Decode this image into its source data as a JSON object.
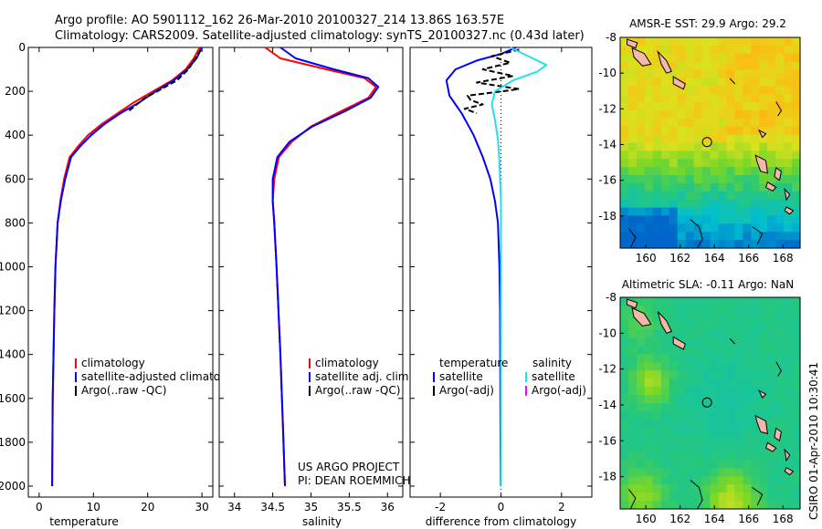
{
  "header": {
    "line1": "Argo profile: AO 5901112_162 26-Mar-2010 20100327_214 13.86S 163.57E",
    "line2": "Climatology: CARS2009. Satellite-adjusted climatology: synTS_20100327.nc (0.43d later)"
  },
  "side_label": "CSIRO 01-Apr-2010 10:30:41",
  "colors": {
    "climatology": "#ff0000",
    "satellite": "#0000ff",
    "argo": "#000000",
    "salinity_satellite": "#22e0f0",
    "salinity_argo": "#ff00ff",
    "land": "#f3b8a8"
  },
  "chart_data": [
    {
      "type": "line",
      "id": "temperature",
      "xlabel": "temperature",
      "ylabel": "",
      "xlim": [
        -2,
        32
      ],
      "ylim": [
        2050,
        0
      ],
      "xticks": [
        0,
        10,
        20,
        30
      ],
      "yticks": [
        0,
        200,
        400,
        600,
        800,
        1000,
        1200,
        1400,
        1600,
        1800,
        2000
      ],
      "legend": [
        "climatology",
        "satellite-adjusted climatology",
        "Argo(..raw -QC)"
      ],
      "series": [
        {
          "name": "climatology",
          "color": "#ff0000",
          "x": [
            29.6,
            28.5,
            27.0,
            24.5,
            21.0,
            17.5,
            14.5,
            11.5,
            9.0,
            7.2,
            5.6,
            4.6,
            3.9,
            3.4,
            3.0,
            2.8,
            2.5,
            2.4
          ],
          "y": [
            0,
            50,
            100,
            150,
            200,
            250,
            300,
            350,
            400,
            450,
            500,
            600,
            700,
            800,
            1000,
            1200,
            1600,
            2000
          ]
        },
        {
          "name": "satellite-adjusted climatology",
          "color": "#0000ff",
          "x": [
            30.0,
            29.0,
            27.3,
            24.8,
            21.5,
            18.5,
            15.0,
            12.0,
            9.6,
            7.6,
            5.9,
            4.8,
            4.0,
            3.4,
            3.0,
            2.8,
            2.5,
            2.4
          ],
          "y": [
            0,
            50,
            100,
            150,
            200,
            250,
            300,
            350,
            400,
            450,
            500,
            600,
            700,
            800,
            1000,
            1200,
            1600,
            2000
          ]
        },
        {
          "name": "Argo(..raw -QC)",
          "color": "#000000",
          "dashed": true,
          "x": [
            29.8,
            28.8,
            27.5,
            25.4,
            22.5,
            19.5,
            18.0,
            16.5
          ],
          "y": [
            10,
            50,
            100,
            150,
            190,
            230,
            260,
            290
          ]
        }
      ]
    },
    {
      "type": "line",
      "id": "salinity",
      "xlabel": "salinity",
      "ylabel": "",
      "xlim": [
        33.8,
        36.2
      ],
      "ylim": [
        2050,
        0
      ],
      "xticks": [
        34,
        34.5,
        35,
        35.5,
        36
      ],
      "yticks": [
        0,
        200,
        400,
        600,
        800,
        1000,
        1200,
        1400,
        1600,
        1800,
        2000
      ],
      "legend": [
        "climatology",
        "satellite adj. clim.",
        "Argo(..raw -QC)"
      ],
      "annotation": [
        "US ARGO PROJECT",
        "PI: DEAN ROEMMICH"
      ],
      "series": [
        {
          "name": "climatology",
          "color": "#ff0000",
          "x": [
            34.4,
            34.6,
            35.2,
            35.7,
            35.85,
            35.75,
            35.4,
            35.0,
            34.75,
            34.58,
            34.52,
            34.5,
            34.52,
            34.55,
            34.6,
            34.64,
            34.66
          ],
          "y": [
            0,
            50,
            100,
            140,
            180,
            230,
            290,
            360,
            430,
            500,
            600,
            700,
            800,
            1000,
            1400,
            1800,
            2000
          ]
        },
        {
          "name": "satellite adj. clim.",
          "color": "#0000ff",
          "x": [
            34.6,
            34.8,
            35.3,
            35.75,
            35.88,
            35.78,
            35.45,
            35.02,
            34.72,
            34.56,
            34.5,
            34.5,
            34.52,
            34.55,
            34.6,
            34.64,
            34.66
          ],
          "y": [
            0,
            50,
            100,
            140,
            180,
            230,
            290,
            360,
            430,
            500,
            600,
            700,
            800,
            1000,
            1400,
            1800,
            2000
          ]
        }
      ]
    },
    {
      "type": "line",
      "id": "difference",
      "xlabel": "difference from climatology",
      "ylabel": "",
      "xlim": [
        -3,
        3
      ],
      "ylim": [
        2050,
        0
      ],
      "xticks": [
        -2,
        0,
        2
      ],
      "yticks": [
        0,
        200,
        400,
        600,
        800,
        1000,
        1200,
        1400,
        1600,
        1800,
        2000
      ],
      "legend_headers": [
        "temperature",
        "salinity"
      ],
      "legend": [
        "satellite",
        "Argo(-adj)",
        "satellite",
        "Argo(-adj)"
      ],
      "series": [
        {
          "name": "satellite",
          "group": "temperature",
          "color": "#0000ff",
          "x": [
            0.5,
            0.0,
            -0.8,
            -1.5,
            -1.8,
            -1.7,
            -1.3,
            -0.9,
            -0.6,
            -0.35,
            -0.2,
            -0.1,
            -0.05,
            -0.03,
            -0.02,
            -0.01
          ],
          "y": [
            0,
            30,
            60,
            100,
            150,
            220,
            300,
            400,
            500,
            600,
            700,
            800,
            1000,
            1200,
            1600,
            2000
          ]
        },
        {
          "name": "Argo(-adj)",
          "group": "temperature",
          "color": "#000000",
          "dashed": true,
          "x": [
            0.6,
            -0.3,
            0.3,
            -0.6,
            0.4,
            -0.8,
            0.6,
            -1.1,
            -1.0,
            -0.6,
            -1.2,
            -0.8
          ],
          "y": [
            10,
            40,
            70,
            100,
            130,
            160,
            190,
            220,
            240,
            260,
            280,
            300
          ]
        },
        {
          "name": "satellite",
          "group": "salinity",
          "color": "#22e0f0",
          "x": [
            0.3,
            0.9,
            1.5,
            1.2,
            0.4,
            -0.2,
            -0.3,
            -0.2,
            -0.1,
            -0.05,
            0.0,
            0.0
          ],
          "y": [
            0,
            40,
            80,
            110,
            150,
            200,
            260,
            330,
            420,
            520,
            700,
            2000
          ]
        }
      ]
    },
    {
      "type": "heatmap",
      "id": "sst_map",
      "title": "AMSR-E SST: 29.9 Argo: 29.2",
      "xlim": [
        158.5,
        169
      ],
      "ylim": [
        -19.8,
        -8
      ],
      "xticks": [
        160,
        162,
        164,
        166,
        168
      ],
      "yticks": [
        -8,
        -10,
        -12,
        -14,
        -16,
        -18
      ],
      "argo_position": {
        "lon": 163.57,
        "lat": -13.86
      }
    },
    {
      "type": "heatmap",
      "id": "sla_map",
      "title": "Altimetric SLA: -0.11 Argo: NaN",
      "xlim": [
        158.5,
        169
      ],
      "ylim": [
        -19.8,
        -8
      ],
      "xticks": [
        160,
        162,
        164,
        166,
        168
      ],
      "yticks": [
        -8,
        -10,
        -12,
        -14,
        -16,
        -18
      ],
      "argo_position": {
        "lon": 163.57,
        "lat": -13.86
      }
    }
  ]
}
